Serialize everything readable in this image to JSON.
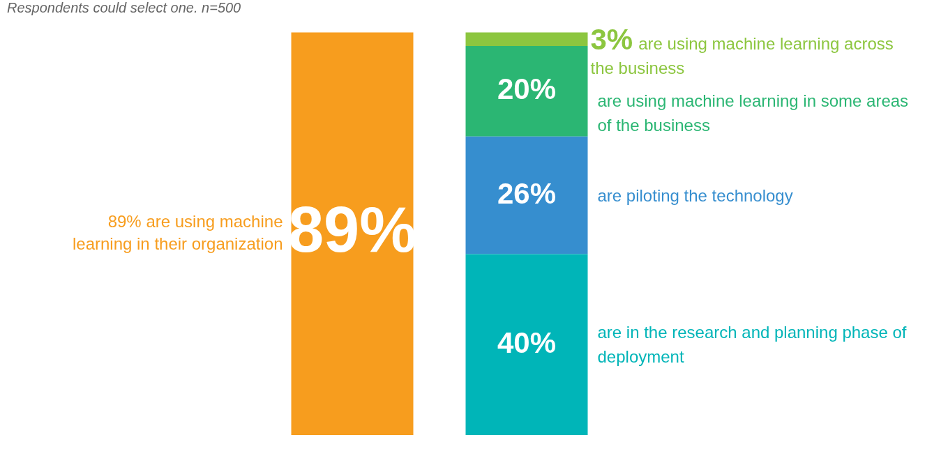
{
  "chart_data": {
    "type": "bar",
    "stacked": true,
    "categories": [
      null,
      null
    ],
    "legend": false,
    "tick_labels": false,
    "series": [
      {
        "name": "89% are using machine learning in their organization",
        "color": "#f79d1e",
        "values": [
          89,
          null
        ],
        "value_labels": [
          "89%",
          null
        ]
      },
      {
        "name": "are in the research and planning phase of deployment",
        "color": "#00b5b8",
        "values": [
          null,
          40
        ],
        "value_labels": [
          null,
          "40%"
        ]
      },
      {
        "name": "are piloting the technology",
        "color": "#368ecf",
        "values": [
          null,
          26
        ],
        "value_labels": [
          null,
          "26%"
        ]
      },
      {
        "name": "are using machine learning in some areas of the business",
        "color": "#2bb673",
        "values": [
          null,
          20
        ],
        "value_labels": [
          null,
          "20%"
        ]
      },
      {
        "name": "are using machine learning across the business",
        "color": "#8cc63f",
        "values": [
          null,
          3
        ],
        "value_labels": [
          null,
          "3%"
        ]
      }
    ],
    "annotations": [
      "Respondents could select one. n=500"
    ]
  }
}
